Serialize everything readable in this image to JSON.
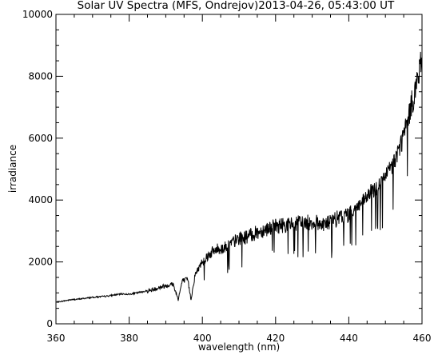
{
  "chart_data": {
    "type": "line",
    "title": "Solar UV Spectra (MFS, Ondrejov)2013-04-26, 05:43:00 UT",
    "xlabel": "wavelength (nm)",
    "ylabel": "irradiance",
    "xlim": [
      360,
      460
    ],
    "ylim": [
      0,
      10000
    ],
    "x_ticks": [
      360,
      380,
      400,
      420,
      440,
      460
    ],
    "y_ticks": [
      0,
      2000,
      4000,
      6000,
      8000,
      10000
    ],
    "grid": false,
    "legend": "none",
    "line_color": "#000000",
    "series": [
      {
        "x": [
          360,
          362,
          364,
          366,
          368,
          370,
          372,
          374,
          376,
          378,
          380,
          382,
          384,
          386,
          388,
          390,
          392,
          393.4,
          394.5,
          396,
          396.9,
          398,
          400,
          402,
          404,
          406,
          408,
          410,
          412,
          414,
          416,
          418,
          420,
          422,
          424,
          426,
          428,
          430,
          432,
          434,
          436,
          438,
          440,
          442,
          444,
          446,
          448,
          450,
          452,
          454,
          456,
          458,
          460
        ],
        "values": [
          700,
          740,
          780,
          800,
          830,
          860,
          880,
          900,
          940,
          970,
          960,
          1000,
          1050,
          1100,
          1180,
          1250,
          1300,
          800,
          1400,
          1450,
          800,
          1600,
          2050,
          2300,
          2450,
          2500,
          2650,
          2800,
          2850,
          2950,
          3050,
          3150,
          3200,
          3250,
          3250,
          3300,
          3300,
          3350,
          3300,
          3300,
          3400,
          3500,
          3600,
          3800,
          4000,
          4300,
          4500,
          4800,
          5200,
          5800,
          6600,
          7600,
          8600
        ]
      }
    ]
  }
}
